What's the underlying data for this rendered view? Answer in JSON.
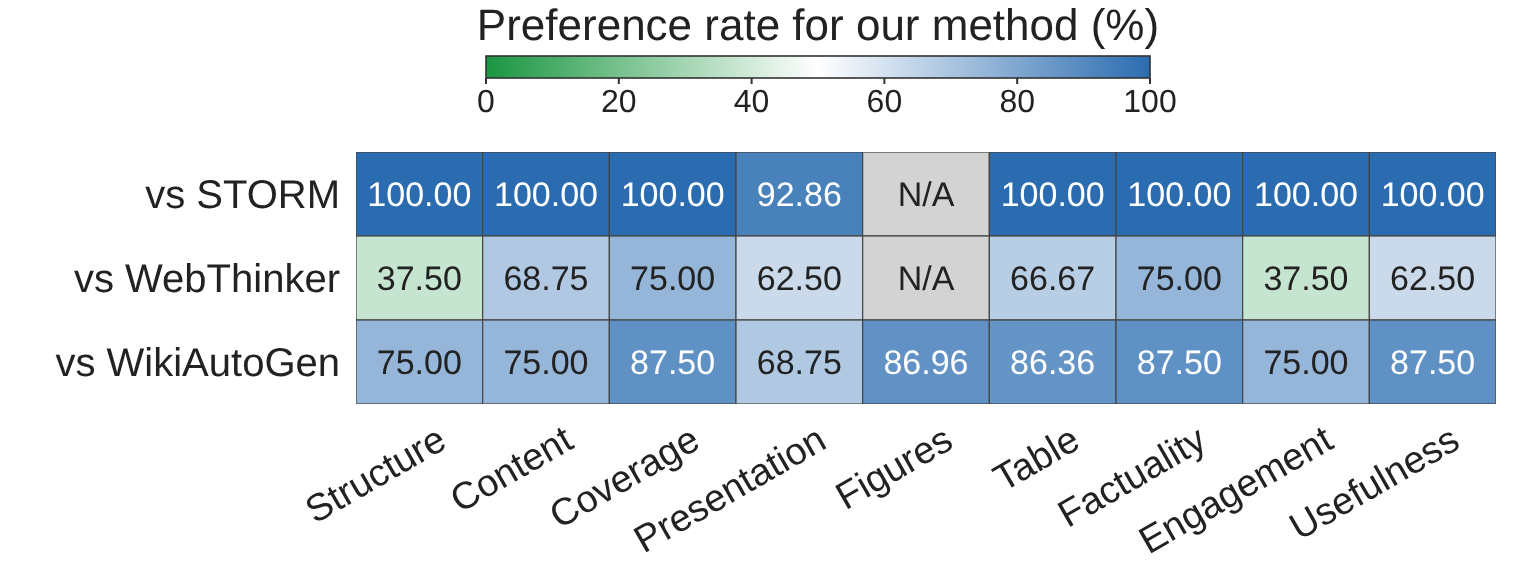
{
  "chart_data": {
    "type": "heatmap",
    "clabel": "Preference rate for our method (%)",
    "categories": [
      "Structure",
      "Content",
      "Coverage",
      "Presentation",
      "Figures",
      "Table",
      "Factuality",
      "Engagement",
      "Usefulness"
    ],
    "y_categories": [
      "vs STORM",
      "vs WebThinker",
      "vs WikiAutoGen"
    ],
    "cells": [
      [
        100,
        100,
        100,
        92.86,
        null,
        100,
        100,
        100,
        100
      ],
      [
        37.5,
        68.75,
        75,
        62.5,
        null,
        66.67,
        75,
        37.5,
        62.5
      ],
      [
        75,
        75,
        87.5,
        68.75,
        86.96,
        86.36,
        87.5,
        75,
        87.5
      ]
    ],
    "cell_labels": [
      [
        "100.00",
        "100.00",
        "100.00",
        "92.86",
        "N/A",
        "100.00",
        "100.00",
        "100.00",
        "100.00"
      ],
      [
        "37.50",
        "68.75",
        "75.00",
        "62.50",
        "N/A",
        "66.67",
        "75.00",
        "37.50",
        "62.50"
      ],
      [
        "75.00",
        "75.00",
        "87.50",
        "68.75",
        "86.96",
        "86.36",
        "87.50",
        "75.00",
        "87.50"
      ]
    ],
    "clim": [
      0,
      100
    ],
    "cticks": [
      0,
      20,
      40,
      60,
      80,
      100
    ]
  }
}
